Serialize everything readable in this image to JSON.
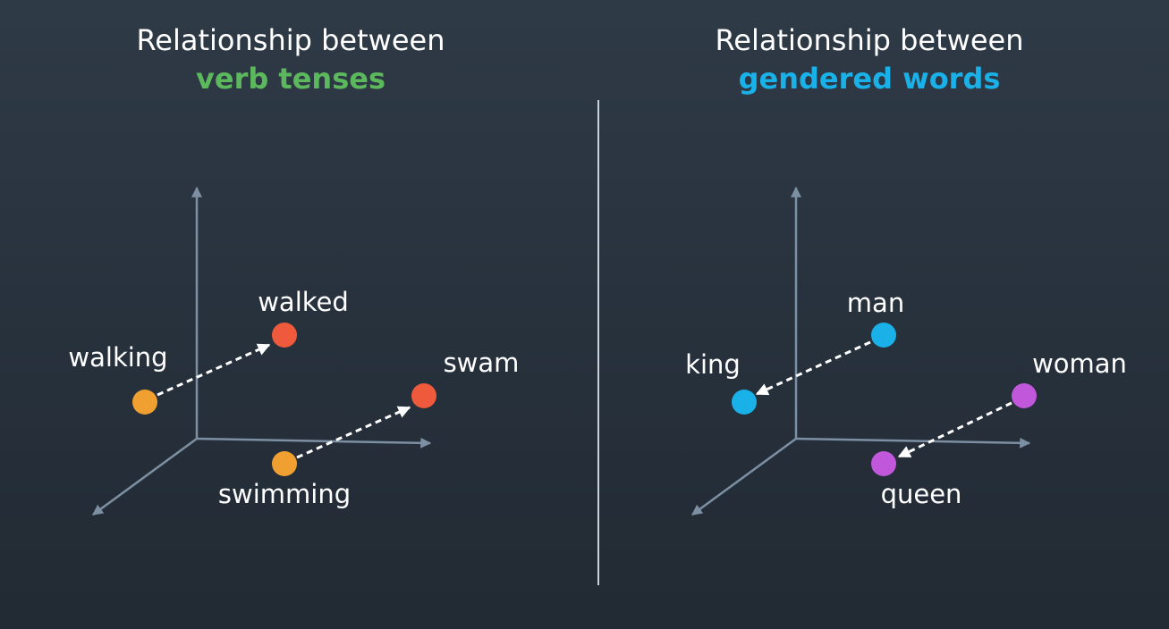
{
  "left_panel": {
    "title_line1": "Relationship between",
    "title_line2": "verb tenses",
    "title_accent": "#5cb85c",
    "words": {
      "walking": "walking",
      "walked": "walked",
      "swimming": "swimming",
      "swam": "swam"
    }
  },
  "right_panel": {
    "title_line1": "Relationship between",
    "title_line2": "gendered words",
    "title_accent": "#1ab0e8",
    "words": {
      "man": "man",
      "king": "king",
      "woman": "woman",
      "queen": "queen"
    }
  },
  "colors": {
    "present_tense": "#f0a030",
    "past_tense": "#f05a3c",
    "male": "#1ab0e8",
    "female": "#c158dc",
    "axis": "#7d90a3",
    "arrow": "#ffffff"
  }
}
